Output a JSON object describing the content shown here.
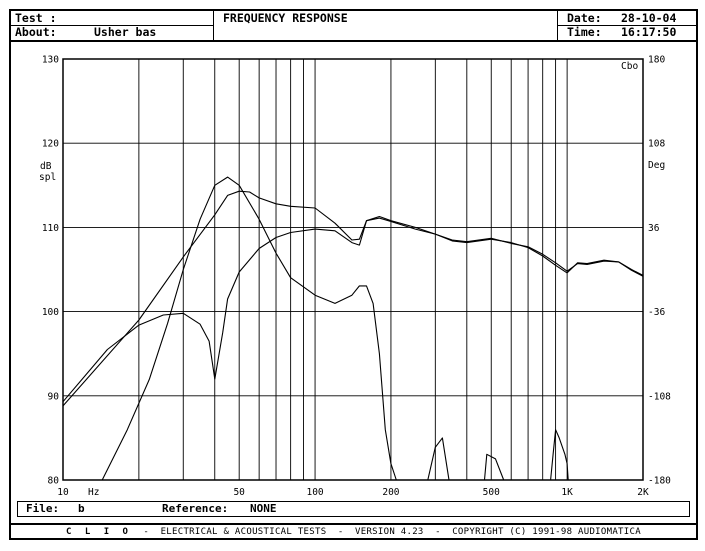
{
  "header": {
    "test_label": "Test :",
    "about_label": "About:",
    "about_value": "Usher bas",
    "title": "FREQUENCY RESPONSE",
    "date_label": "Date:",
    "date_value": "28-10-04",
    "time_label": "Time:",
    "time_value": "16:17:50"
  },
  "file_bar": {
    "file_label": "File:",
    "file_value": "b",
    "reference_label": "Reference:",
    "reference_value": "NONE"
  },
  "footer": {
    "brand": "C L I O",
    "text": "-  ELECTRICAL & ACOUSTICAL TESTS  -  VERSION 4.23  -  COPYRIGHT (C) 1991-98 AUDIOMATICA"
  },
  "chart_data": {
    "type": "line",
    "title": "FREQUENCY RESPONSE",
    "xscale": "log",
    "xlim": [
      10,
      2000
    ],
    "ylim": [
      80,
      130
    ],
    "y2lim": [
      -180,
      180
    ],
    "ylabel": [
      "dB",
      "spl"
    ],
    "y2label": "Deg",
    "x_unit": "Hz",
    "corner_label": "Cbo",
    "grid": true,
    "x_tick_labels": [
      {
        "x": 10,
        "label": "10"
      },
      {
        "x": 50,
        "label": "50"
      },
      {
        "x": 100,
        "label": "100"
      },
      {
        "x": 200,
        "label": "200"
      },
      {
        "x": 500,
        "label": "500"
      },
      {
        "x": 1000,
        "label": "1K"
      },
      {
        "x": 2000,
        "label": "2K"
      }
    ],
    "y_ticks": [
      80,
      90,
      100,
      110,
      120,
      130
    ],
    "y2_ticks": [
      -180,
      -108,
      -36,
      36,
      108,
      180
    ],
    "series": [
      {
        "axis": "left",
        "x": [
          10,
          20,
          30,
          40,
          45,
          50,
          55,
          60,
          70,
          80,
          100,
          120,
          140,
          150,
          160,
          180,
          200,
          250,
          300,
          350,
          400,
          500,
          600,
          700,
          800,
          900,
          1000,
          1100,
          1200,
          1400,
          1600,
          1800,
          2000
        ],
        "y": [
          88.8,
          99,
          106.5,
          111.5,
          113.8,
          114.3,
          114.2,
          113.5,
          112.8,
          112.5,
          112.3,
          110.5,
          108.5,
          108.6,
          110.8,
          111.3,
          110.8,
          110,
          109.2,
          108.5,
          108.3,
          108.7,
          108.1,
          107.7,
          106.8,
          105.8,
          104.8,
          105.7,
          105.6,
          106,
          105.9,
          105,
          104.3
        ]
      },
      {
        "axis": "left",
        "x": [
          10,
          15,
          20,
          25,
          30,
          35,
          38,
          40,
          43,
          45,
          50,
          60,
          70,
          80,
          100,
          120,
          140,
          150,
          160,
          180,
          200,
          250,
          300,
          350,
          400,
          500,
          600,
          700,
          800,
          900,
          1000,
          1100,
          1200,
          1400,
          1600,
          1800,
          2000
        ],
        "y": [
          89.3,
          95.5,
          98.4,
          99.6,
          99.8,
          98.5,
          96.5,
          92,
          97.5,
          101.5,
          104.7,
          107.5,
          108.8,
          109.4,
          109.8,
          109.6,
          108.2,
          107.9,
          110.8,
          111.1,
          110.7,
          109.8,
          109.2,
          108.4,
          108.2,
          108.6,
          108.2,
          107.6,
          106.6,
          105.5,
          104.6,
          105.8,
          105.7,
          106.1,
          105.9,
          104.9,
          104.2
        ]
      },
      {
        "axis": "right",
        "x": [
          14.3,
          18,
          22,
          26,
          30,
          35,
          40,
          45,
          50,
          60,
          70,
          80,
          100,
          120,
          140,
          150,
          160,
          170,
          180,
          190,
          200,
          210
        ],
        "y": [
          -180,
          -137,
          -94,
          -46,
          0,
          43,
          72,
          79,
          72,
          43,
          14,
          -7,
          -22,
          -29,
          -22,
          -14,
          -14,
          -29,
          -72,
          -137,
          -166,
          -180
        ]
      },
      {
        "axis": "right",
        "x": [
          280,
          300,
          320,
          340
        ],
        "y": [
          -180,
          -152,
          -144,
          -180
        ]
      },
      {
        "axis": "right",
        "x": [
          470,
          480,
          520,
          560
        ],
        "y": [
          -180,
          -158,
          -162,
          -180
        ]
      },
      {
        "axis": "right",
        "x": [
          860,
          880,
          900,
          930,
          980,
          1000,
          1010
        ],
        "y": [
          -180,
          -158,
          -137,
          -144,
          -158,
          -166,
          -180
        ]
      }
    ]
  }
}
